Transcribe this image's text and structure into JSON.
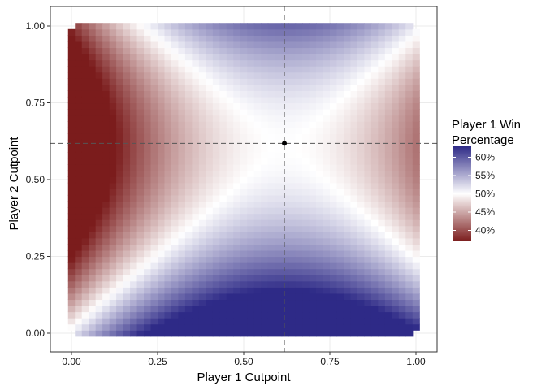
{
  "chart_data": {
    "type": "heatmap",
    "title": "",
    "xlabel": "Player 1 Cutpoint",
    "ylabel": "Player 2 Cutpoint",
    "xlim": [
      0,
      1
    ],
    "ylim": [
      0,
      1
    ],
    "x_ticks": [
      "0.00",
      "0.25",
      "0.50",
      "0.75",
      "1.00"
    ],
    "y_ticks": [
      "0.00",
      "0.25",
      "0.50",
      "0.75",
      "1.00"
    ],
    "grid_resolution": 0.02,
    "value_description": "Player 1 win percentage as a function of both players' cutpoints",
    "sample_values": [
      {
        "x": 0.0,
        "y": 0.5,
        "value": 0.38
      },
      {
        "x": 1.0,
        "y": 0.5,
        "value": 0.38
      },
      {
        "x": 0.5,
        "y": 1.0,
        "value": 0.63
      },
      {
        "x": 0.5,
        "y": 0.0,
        "value": 0.63
      },
      {
        "x": 0.618,
        "y": 0.618,
        "value": 0.5
      }
    ],
    "reference_lines": {
      "x": 0.618,
      "y": 0.618,
      "style": "dashed"
    },
    "equilibrium_point": {
      "x": 0.618,
      "y": 0.618
    },
    "legend": {
      "title_lines": [
        "Player 1 Win",
        "Percentage"
      ],
      "placement": "right",
      "min": 0.37,
      "max": 0.63,
      "breaks": [
        0.6,
        0.55,
        0.5,
        0.45,
        0.4
      ],
      "labels": [
        "60%",
        "55%",
        "50%",
        "45%",
        "40%"
      ],
      "low_color": "#7b1c1c",
      "mid_color": "#ffffff",
      "high_color": "#2e2a87"
    },
    "grid": true,
    "panel_border_color": "#333333",
    "gridline_color": "#ebebeb"
  }
}
